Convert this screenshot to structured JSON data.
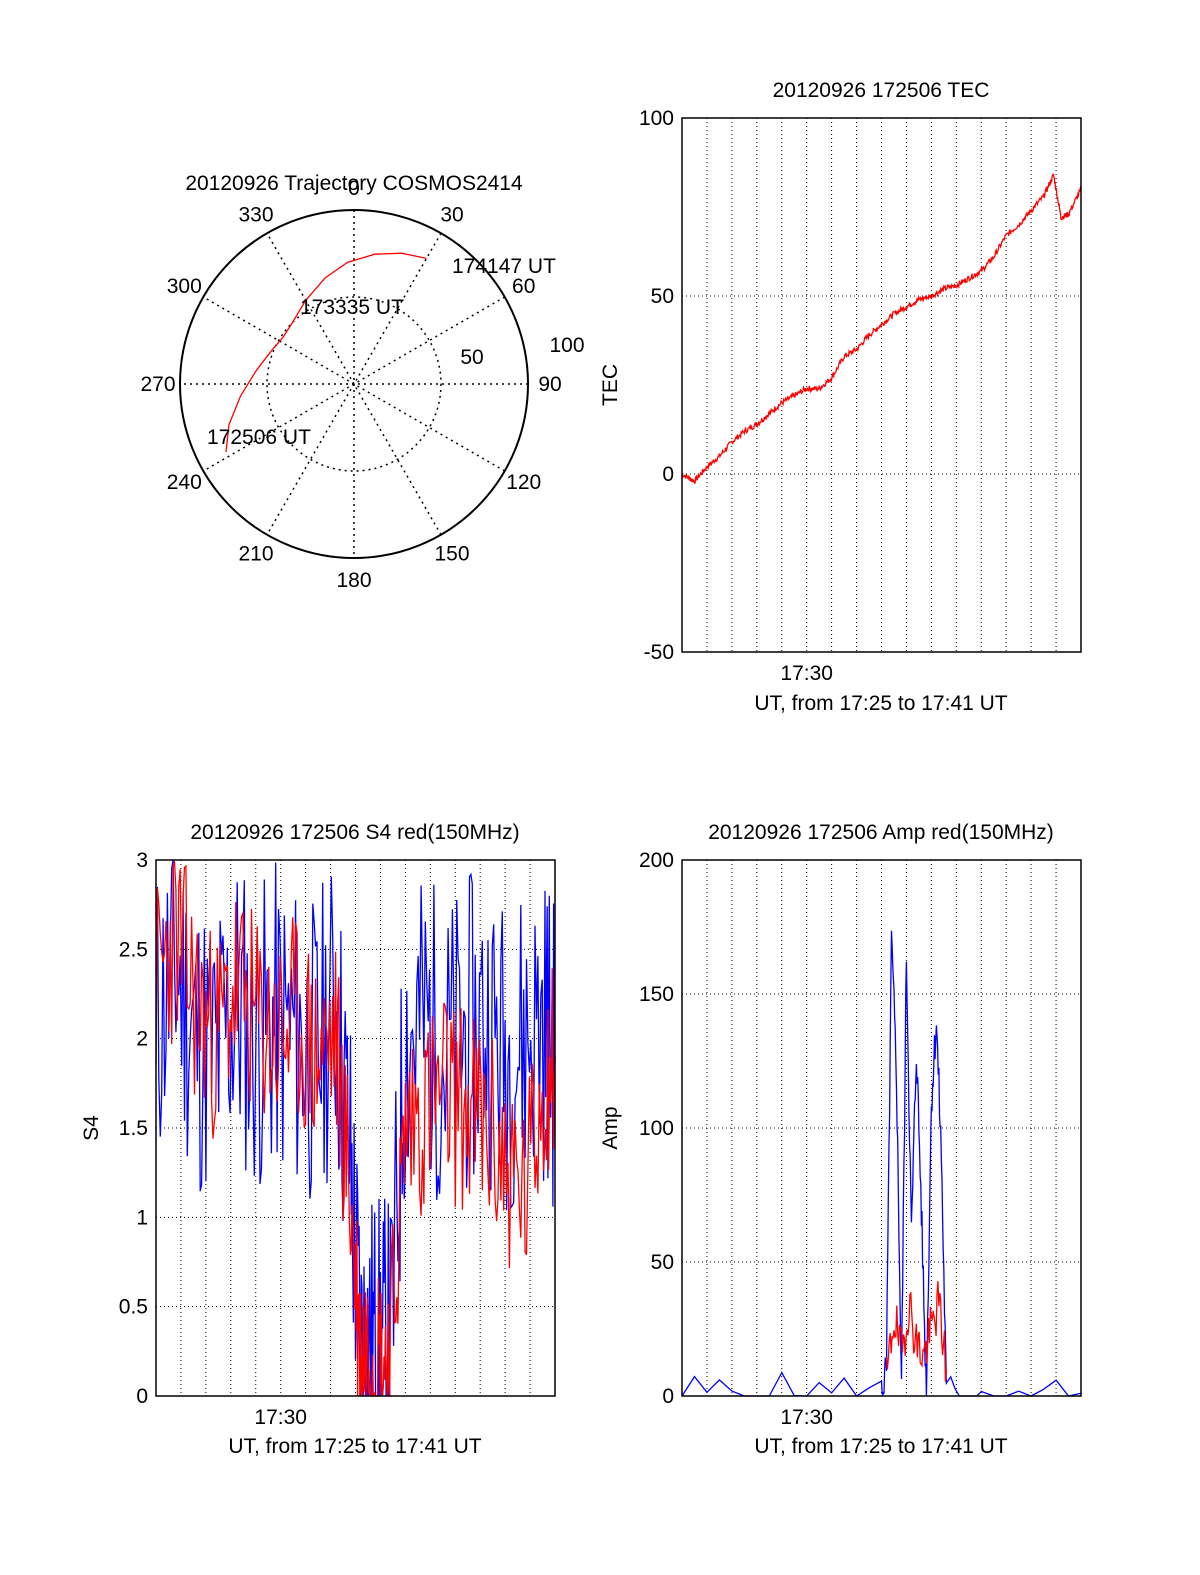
{
  "chart_data": [
    {
      "type": "polar",
      "title": "20120926 Trajectory COSMOS2414",
      "angle_labels": [
        "0",
        "30",
        "60",
        "90",
        "120",
        "150",
        "180",
        "210",
        "240",
        "270",
        "300",
        "330"
      ],
      "radial_labels": [
        "50",
        "100"
      ],
      "trajectory": [
        {
          "az": 242,
          "el": 15
        },
        {
          "az": 252,
          "el": 22
        },
        {
          "az": 264,
          "el": 31
        },
        {
          "az": 278,
          "el": 39
        },
        {
          "az": 292,
          "el": 44
        },
        {
          "az": 303,
          "el": 46
        },
        {
          "az": 315,
          "el": 45
        },
        {
          "az": 330,
          "el": 40
        },
        {
          "az": 345,
          "el": 33
        },
        {
          "az": 357,
          "el": 27
        },
        {
          "az": 9,
          "el": 22
        },
        {
          "az": 20,
          "el": 18
        },
        {
          "az": 30,
          "el": 15
        }
      ],
      "annotations": [
        {
          "text": "174147 UT",
          "az": 30,
          "el": 15
        },
        {
          "text": "173335 UT",
          "az": 330,
          "el": 62
        },
        {
          "text": "172506 UT",
          "az": 243,
          "el": 15
        }
      ],
      "color": "#ff0000"
    },
    {
      "type": "line",
      "title": "20120926 172506 TEC",
      "ylabel": "TEC",
      "xlabel": "UT, from 17:25 to 17:41 UT",
      "x_tick_label": "17:30",
      "x_tick_value": 5,
      "xlim": [
        0,
        16
      ],
      "ylim": [
        -50,
        100
      ],
      "y_ticks": [
        "100",
        "50",
        "0",
        "-50"
      ],
      "y_tick_values": [
        100,
        50,
        0,
        -50
      ],
      "series": [
        {
          "color": "#ff0000",
          "x": [
            0,
            0.5,
            1,
            1.5,
            2,
            2.5,
            3,
            3.5,
            4,
            4.5,
            5,
            5.5,
            6,
            6.5,
            7,
            7.5,
            8,
            8.5,
            9,
            9.5,
            10,
            10.5,
            11,
            11.5,
            12,
            12.5,
            13,
            13.5,
            14,
            14.5,
            14.9,
            15.2,
            15.5,
            16
          ],
          "y": [
            0,
            -2,
            2,
            5,
            9,
            12,
            14,
            17,
            20,
            22,
            24,
            24,
            27,
            33,
            35,
            39,
            42,
            45,
            47,
            49,
            50,
            52,
            53,
            55,
            57,
            61,
            67,
            70,
            74,
            78,
            84,
            72,
            73,
            80
          ]
        }
      ]
    },
    {
      "type": "line",
      "title": "20120926 172506 S4 red(150MHz)",
      "ylabel": "S4",
      "xlabel": "UT, from 17:25 to 17:41 UT",
      "x_tick_label": "17:30",
      "x_tick_value": 5,
      "xlim": [
        0,
        16
      ],
      "ylim": [
        0,
        3
      ],
      "y_ticks": [
        "3",
        "2.5",
        "2",
        "1.5",
        "1",
        "0.5",
        "0"
      ],
      "y_tick_values": [
        3,
        2.5,
        2,
        1.5,
        1,
        0.5,
        0
      ],
      "series": [
        {
          "name_hidden": "blue",
          "color": "#0000ff",
          "x": [
            0,
            0.8,
            1.6,
            2.4,
            3.2,
            4.0,
            4.8,
            5.6,
            6.4,
            7.2,
            7.8,
            8.2,
            8.6,
            9.0,
            9.4,
            10.0,
            10.8,
            11.6,
            12.4,
            13.2,
            14.0,
            14.8,
            15.6,
            16.0
          ],
          "y": [
            2.1,
            2.4,
            2.0,
            1.9,
            2.2,
            2.0,
            2.1,
            2.0,
            1.9,
            2.2,
            1.3,
            0.25,
            0.3,
            0.25,
            0.25,
            2.0,
            2.1,
            1.9,
            2.0,
            2.1,
            1.9,
            2.0,
            2.1,
            1.9
          ]
        },
        {
          "name_hidden": "red",
          "color": "#ff0000",
          "x": [
            0,
            0.8,
            1.6,
            2.4,
            3.2,
            4.0,
            4.8,
            5.6,
            6.4,
            7.2,
            7.8,
            8.2,
            8.6,
            9.0,
            9.4,
            10.0,
            10.8,
            11.6,
            12.4,
            13.2,
            14.0,
            14.8,
            15.6,
            16.0
          ],
          "y": [
            2.3,
            2.6,
            2.2,
            2.0,
            2.3,
            2.1,
            2.0,
            2.1,
            1.9,
            2.0,
            1.1,
            0.25,
            0.3,
            0.2,
            0.25,
            1.5,
            1.6,
            1.7,
            1.6,
            1.5,
            1.3,
            1.1,
            1.8,
            1.9
          ]
        }
      ]
    },
    {
      "type": "line",
      "title": "20120926 172506 Amp red(150MHz)",
      "ylabel": "Amp",
      "xlabel": "UT, from 17:25 to 17:41 UT",
      "x_tick_label": "17:30",
      "x_tick_value": 5,
      "xlim": [
        0,
        16
      ],
      "ylim": [
        0,
        200
      ],
      "y_ticks": [
        "200",
        "150",
        "100",
        "50",
        "0"
      ],
      "y_tick_values": [
        200,
        150,
        100,
        50,
        0
      ],
      "series": [
        {
          "color": "#0000ff",
          "x": [
            0,
            4,
            8,
            8.2,
            8.4,
            8.6,
            8.8,
            9.0,
            9.2,
            9.4,
            9.6,
            9.8,
            10.0,
            10.2,
            10.4,
            10.6,
            12,
            16
          ],
          "y": [
            1,
            1,
            1,
            10,
            170,
            120,
            5,
            165,
            60,
            130,
            70,
            0,
            110,
            140,
            90,
            1,
            1,
            1
          ]
        },
        {
          "color": "#ff0000",
          "x": [
            8.2,
            8.5,
            8.8,
            9.1,
            9.4,
            9.7,
            10.0,
            10.3,
            10.6
          ],
          "y": [
            5,
            30,
            15,
            35,
            20,
            15,
            25,
            35,
            10
          ]
        }
      ]
    }
  ]
}
